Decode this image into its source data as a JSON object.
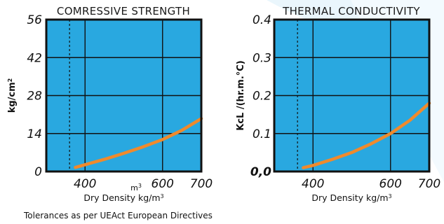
{
  "colors": {
    "plot_background": "#29a8e0",
    "curve": "#f08a2c",
    "grid": "#111111",
    "swoosh": "#eaf6fc"
  },
  "footer_text": "Tolerances as per UEAct European Directives",
  "stray_label": "m³",
  "chart_data": [
    {
      "type": "line",
      "title": "COMRESSIVE STRENGTH",
      "ylabel": "kg/cm²",
      "xlabel": "Dry Density kg/m³",
      "xlim": [
        300,
        700
      ],
      "ylim": [
        0,
        56
      ],
      "xticks": [
        400,
        600,
        700
      ],
      "xtick_labels": [
        "400",
        "600",
        "700"
      ],
      "yticks": [
        0,
        14,
        28,
        42,
        56
      ],
      "ytick_labels": [
        "0",
        "14",
        "28",
        "42",
        "56"
      ],
      "reference_line_x": 360,
      "grid": true,
      "legend": "none",
      "series": [
        {
          "x": [
            375,
            400,
            450,
            500,
            550,
            600,
            650,
            700
          ],
          "y": [
            1.5,
            2.5,
            4.5,
            6.7,
            9.1,
            11.8,
            15.2,
            19.5
          ]
        }
      ]
    },
    {
      "type": "line",
      "title": "THERMAL CONDUCTIVITY",
      "ylabel": "KcL /(hr.m.°C)",
      "xlabel": "Dry Density kg/m³",
      "xlim": [
        300,
        700
      ],
      "ylim": [
        0,
        0.4
      ],
      "xticks": [
        400,
        600,
        700
      ],
      "xtick_labels": [
        "400",
        "600",
        "700"
      ],
      "yticks": [
        0,
        0.1,
        0.2,
        0.3,
        0.4
      ],
      "ytick_labels": [
        "0,0",
        "0.1",
        "0.2",
        "0.3",
        "0.4"
      ],
      "reference_line_x": 360,
      "grid": true,
      "legend": "none",
      "series": [
        {
          "x": [
            375,
            400,
            450,
            500,
            550,
            600,
            650,
            700
          ],
          "y": [
            0.01,
            0.016,
            0.032,
            0.05,
            0.073,
            0.1,
            0.135,
            0.18
          ]
        }
      ]
    }
  ]
}
